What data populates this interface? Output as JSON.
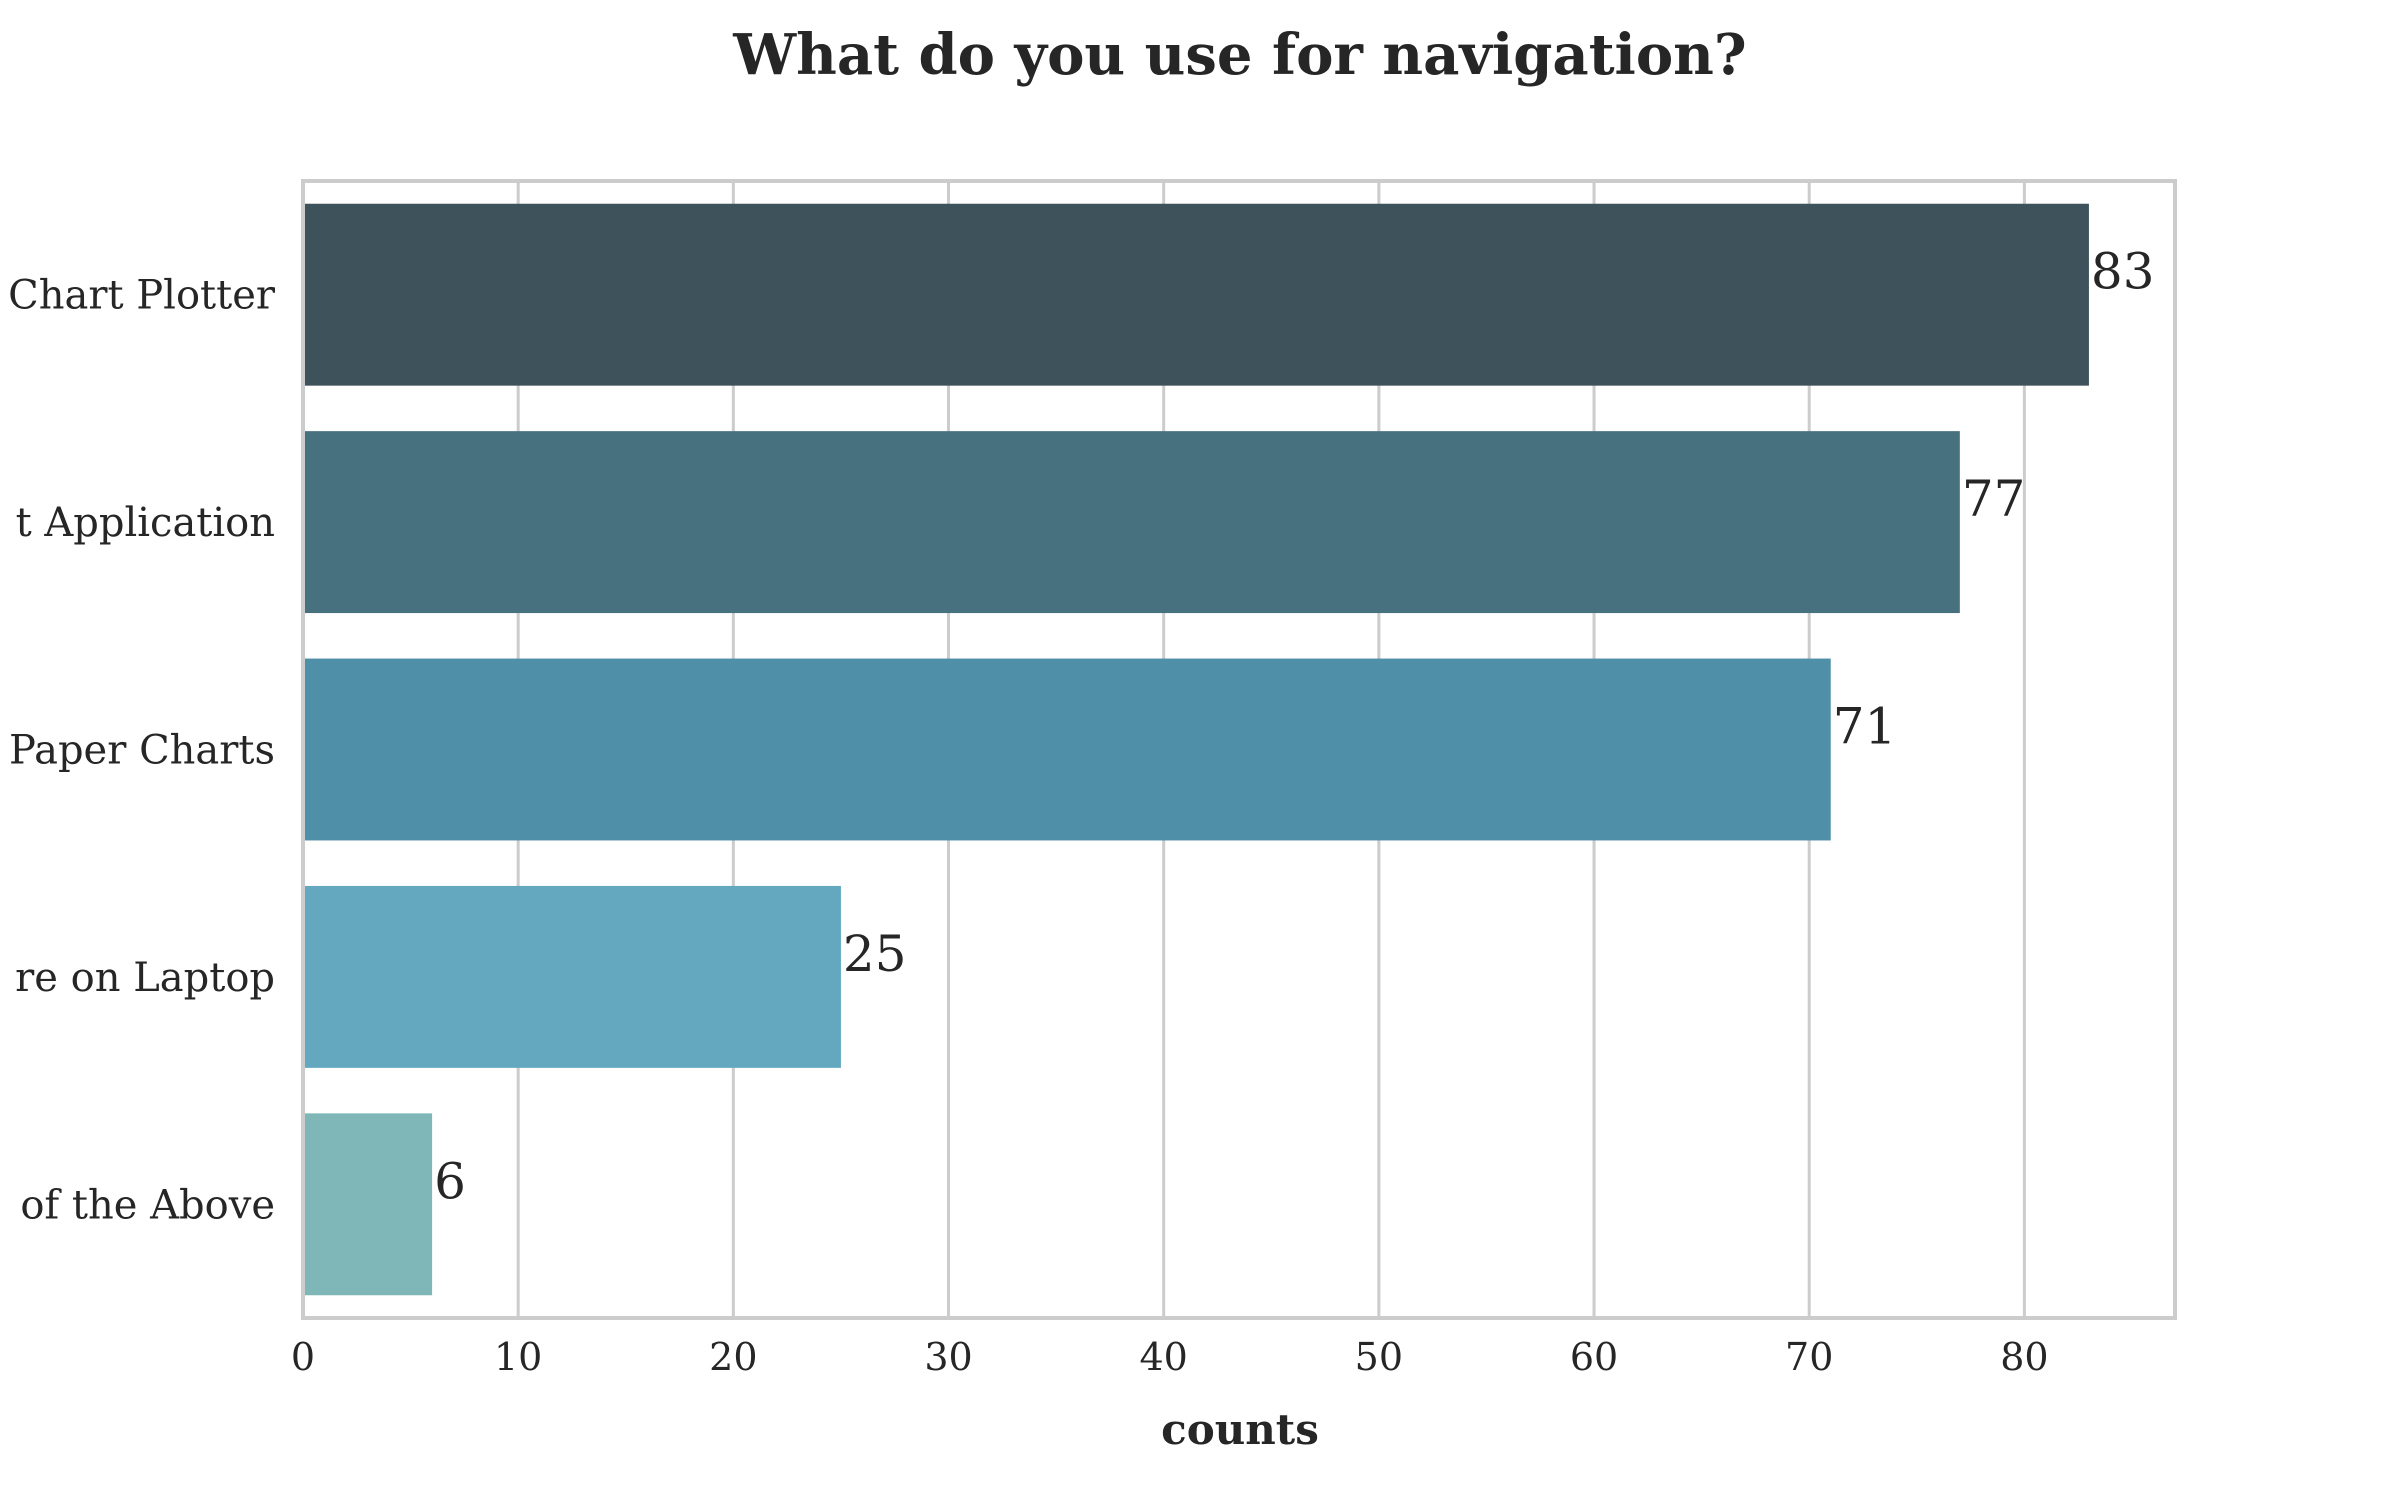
{
  "chart_data": {
    "type": "bar",
    "orientation": "horizontal",
    "title": "What do you use for navigation?",
    "xlabel": "counts",
    "ylabel": "",
    "categories": [
      "Chart Plotter",
      "t Application",
      "Paper Charts",
      "re on Laptop",
      "of the Above"
    ],
    "values": [
      83,
      77,
      71,
      25,
      6
    ],
    "data_labels": [
      "83",
      "77",
      "71",
      "25",
      "6"
    ],
    "colors": [
      "#3e525b",
      "#48717f",
      "#4f8fa8",
      "#63a8be",
      "#7fb7b8"
    ],
    "xlim": [
      0,
      87
    ],
    "xticks": [
      0,
      10,
      20,
      30,
      40,
      50,
      60,
      70,
      80
    ],
    "xtick_labels": [
      "0",
      "10",
      "20",
      "30",
      "40",
      "50",
      "60",
      "70",
      "80"
    ],
    "grid": "vertical",
    "legend": "none"
  }
}
